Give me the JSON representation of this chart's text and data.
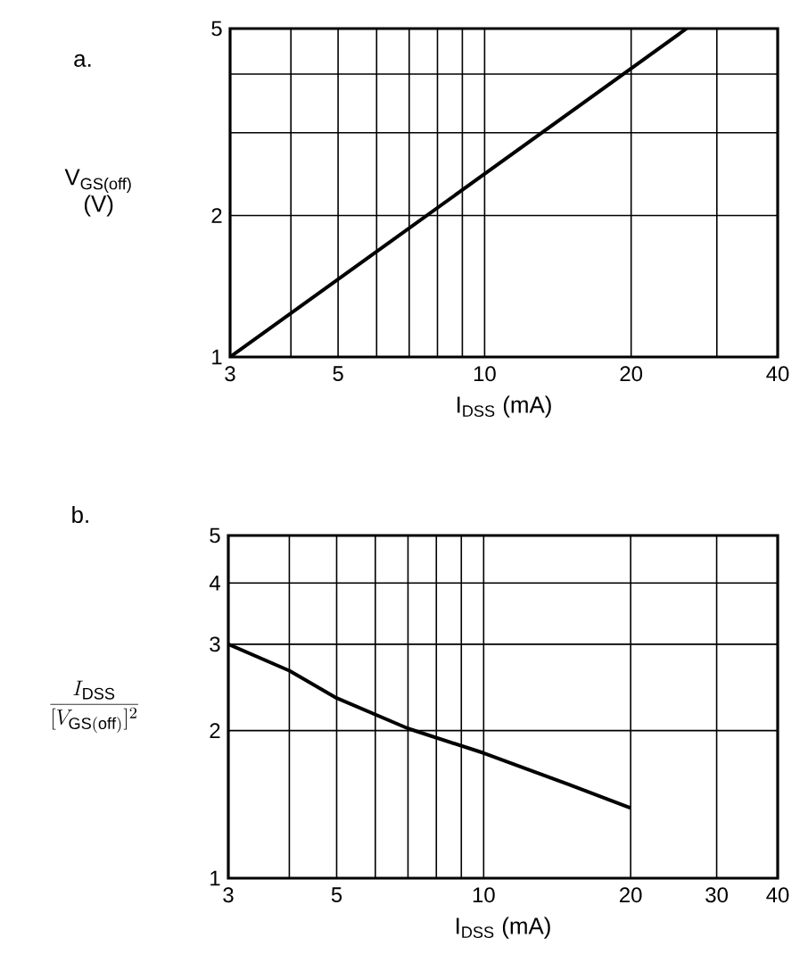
{
  "chart_data": [
    {
      "type": "line",
      "title": "a.",
      "xlabel": "I$_{DSS}$ (mA)",
      "ylabel": "V$_{GS(off)}$ (V)",
      "log": "xy",
      "grid": true,
      "xlim": [
        3,
        40
      ],
      "ylim": [
        1,
        5
      ],
      "xticks": [
        3,
        {
          "value": 4,
          "label": null
        },
        5,
        {
          "value": 6,
          "label": null
        },
        {
          "value": 7,
          "label": null
        },
        {
          "value": 8,
          "label": null
        },
        {
          "value": 9,
          "label": null
        },
        10,
        20,
        {
          "value": 30,
          "label": null
        },
        40
      ],
      "yticks": [
        1,
        2,
        {
          "value": 3,
          "label": null
        },
        {
          "value": 4,
          "label": null
        },
        5
      ],
      "series": [
        {
          "color": "#000000",
          "x": [
            3,
            26
          ],
          "values": [
            1,
            5
          ]
        }
      ]
    },
    {
      "type": "line",
      "title": "b.",
      "xlabel": "I$_{DSS}$ (mA)",
      "ylabel": "\\frac{I_{\\mathrm{DSS}}}{[V_{\\mathrm{GS(off)}}]^{2}}",
      "log": "xy",
      "grid": true,
      "xlim": [
        3,
        40
      ],
      "ylim": [
        1,
        5
      ],
      "xticks": [
        3,
        {
          "value": 4,
          "label": null
        },
        5,
        {
          "value": 6,
          "label": null
        },
        {
          "value": 7,
          "label": null
        },
        {
          "value": 8,
          "label": null
        },
        {
          "value": 9,
          "label": null
        },
        10,
        20,
        30,
        40
      ],
      "yticks": [
        1,
        2,
        3,
        4,
        5
      ],
      "series": [
        {
          "color": "#000000",
          "x": [
            3,
            4,
            5,
            7,
            10,
            15,
            20
          ],
          "values": [
            3,
            2.65,
            2.33,
            2.02,
            1.8,
            1.55,
            1.39
          ]
        }
      ]
    }
  ]
}
